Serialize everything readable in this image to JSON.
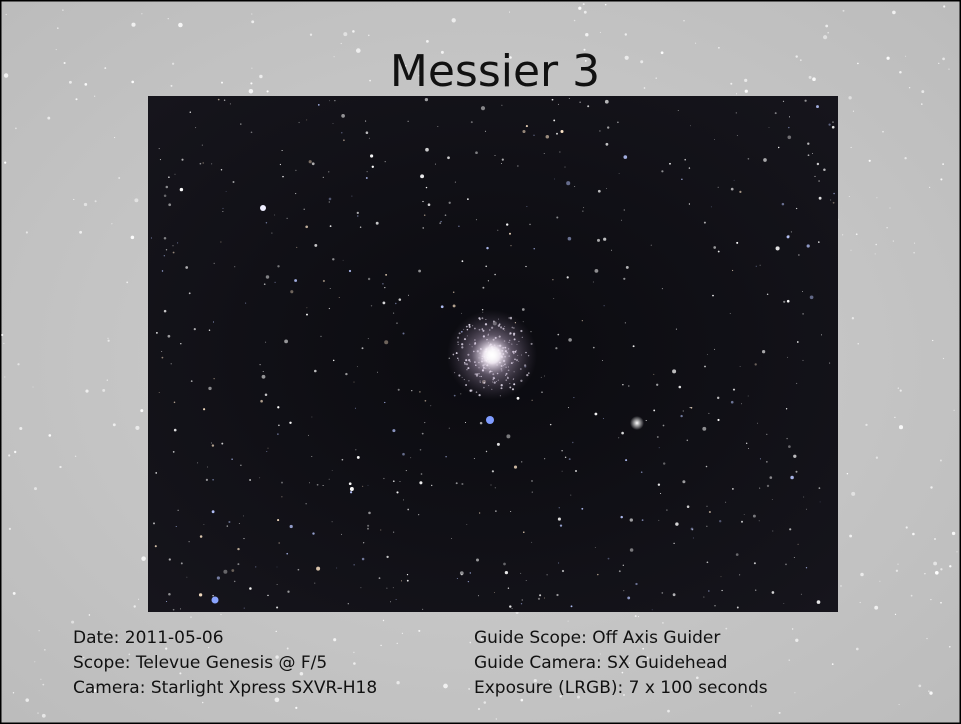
{
  "slide": {
    "title": "Messier 3",
    "details": {
      "left": [
        "Date: 2011-05-06",
        "Scope: Televue Genesis @ F/5",
        "Camera: Starlight Xpress SXVR-H18"
      ],
      "right": [
        "Guide Scope: Off Axis Guider",
        "Guide Camera: SX Guidehead",
        "Exposure (LRGB): 7 x 100 seconds"
      ]
    }
  }
}
